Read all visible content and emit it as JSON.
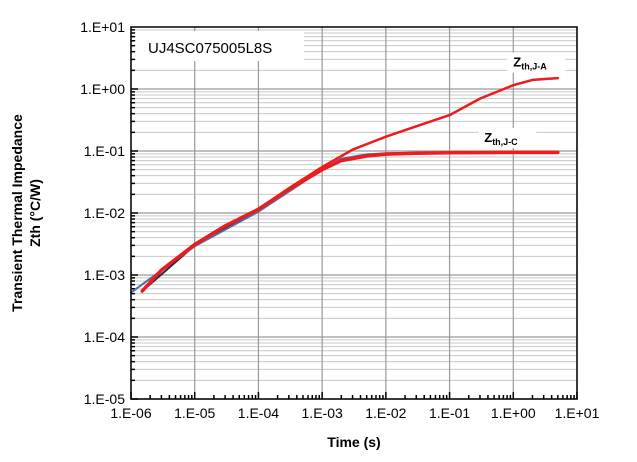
{
  "chart_data": {
    "type": "line",
    "title": "UJ4SC075005L8S",
    "xlabel": "Time (s)",
    "ylabel_lines": [
      "Transient Thermal Impedance",
      "Zth  (°C/W)"
    ],
    "x_scale": "log",
    "y_scale": "log",
    "xlim": [
      1e-06,
      10
    ],
    "ylim": [
      1e-05,
      10
    ],
    "grid": true,
    "x_ticks": [
      "1.E-06",
      "1.E-05",
      "1.E-04",
      "1.E-03",
      "1.E-02",
      "1.E-01",
      "1.E+00",
      "1.E+01"
    ],
    "y_ticks": [
      "1.E-05",
      "1.E-04",
      "1.E-03",
      "1.E-02",
      "1.E-01",
      "1.E+00",
      "1.E+01"
    ],
    "annotations": [
      {
        "main": "Z",
        "sub": "th,J-A",
        "x": 1.0,
        "y": 2.3
      },
      {
        "main": "Z",
        "sub": "th,J-C",
        "x": 0.35,
        "y": 0.14
      }
    ],
    "series": [
      {
        "color": "#1f2a3a",
        "width": 2,
        "x": [
          1.5e-06,
          1e-05,
          0.0001,
          0.001,
          0.003,
          0.01,
          0.03,
          0.1,
          0.3,
          1,
          2,
          5
        ],
        "y": [
          0.00055,
          0.003,
          0.011,
          0.055,
          0.105,
          0.17,
          0.25,
          0.38,
          0.7,
          1.15,
          1.4,
          1.5
        ]
      },
      {
        "color": "#4a6fa5",
        "width": 2,
        "x": [
          1e-06,
          1e-05,
          0.0001,
          0.001,
          0.002,
          0.005,
          0.01,
          0.1,
          1,
          5
        ],
        "y": [
          0.00052,
          0.0029,
          0.0105,
          0.05,
          0.075,
          0.088,
          0.092,
          0.095,
          0.095,
          0.095
        ]
      },
      {
        "color": "#ee1c1c",
        "width": 2.5,
        "x": [
          1.5e-06,
          3e-06,
          1e-05,
          3e-05,
          0.0001,
          0.0003,
          0.001,
          0.003,
          0.01,
          0.03,
          0.1,
          0.3,
          1,
          2,
          5
        ],
        "y": [
          0.00055,
          0.0012,
          0.0031,
          0.0062,
          0.0115,
          0.025,
          0.055,
          0.105,
          0.17,
          0.25,
          0.38,
          0.7,
          1.15,
          1.4,
          1.5
        ]
      },
      {
        "color": "#ee1c1c",
        "width": 3.5,
        "x": [
          1.5e-06,
          3e-06,
          1e-05,
          3e-05,
          0.0001,
          0.0003,
          0.001,
          0.002,
          0.005,
          0.01,
          0.03,
          0.1,
          1,
          5
        ],
        "y": [
          0.00055,
          0.0012,
          0.0031,
          0.0062,
          0.0115,
          0.024,
          0.05,
          0.07,
          0.083,
          0.089,
          0.092,
          0.094,
          0.095,
          0.095
        ]
      }
    ]
  }
}
